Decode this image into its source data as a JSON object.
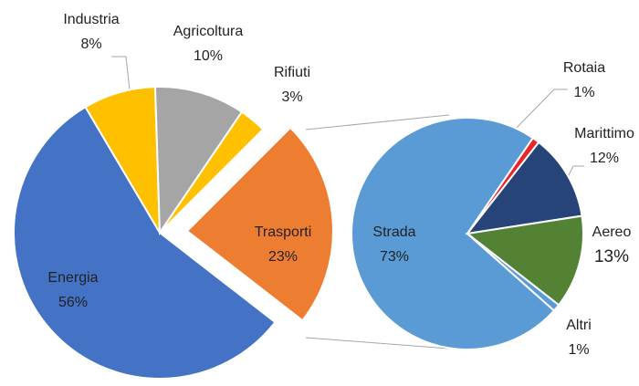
{
  "chart_data": [
    {
      "type": "pie",
      "categories": [
        "Energia",
        "Industria",
        "Agricoltura",
        "Rifiuti",
        "Trasporti"
      ],
      "values": [
        56,
        8,
        10,
        3,
        23
      ],
      "value_labels": [
        "56%",
        "8%",
        "10%",
        "3%",
        "23%"
      ],
      "colors": [
        "#4472c4",
        "#ffc000",
        "#a5a5a5",
        "#ffc000",
        "#ed7d31"
      ]
    },
    {
      "type": "pie",
      "categories": [
        "Strada",
        "Rotaia",
        "Marittimo",
        "Aereo",
        "Altri"
      ],
      "values": [
        73,
        1,
        12,
        13,
        1
      ],
      "value_labels": [
        "73%",
        "1%",
        "12%",
        "13%",
        "1%"
      ],
      "colors": [
        "#5b9bd5",
        "#e8262a",
        "#264478",
        "#548235",
        "#5b9bd5"
      ]
    }
  ]
}
